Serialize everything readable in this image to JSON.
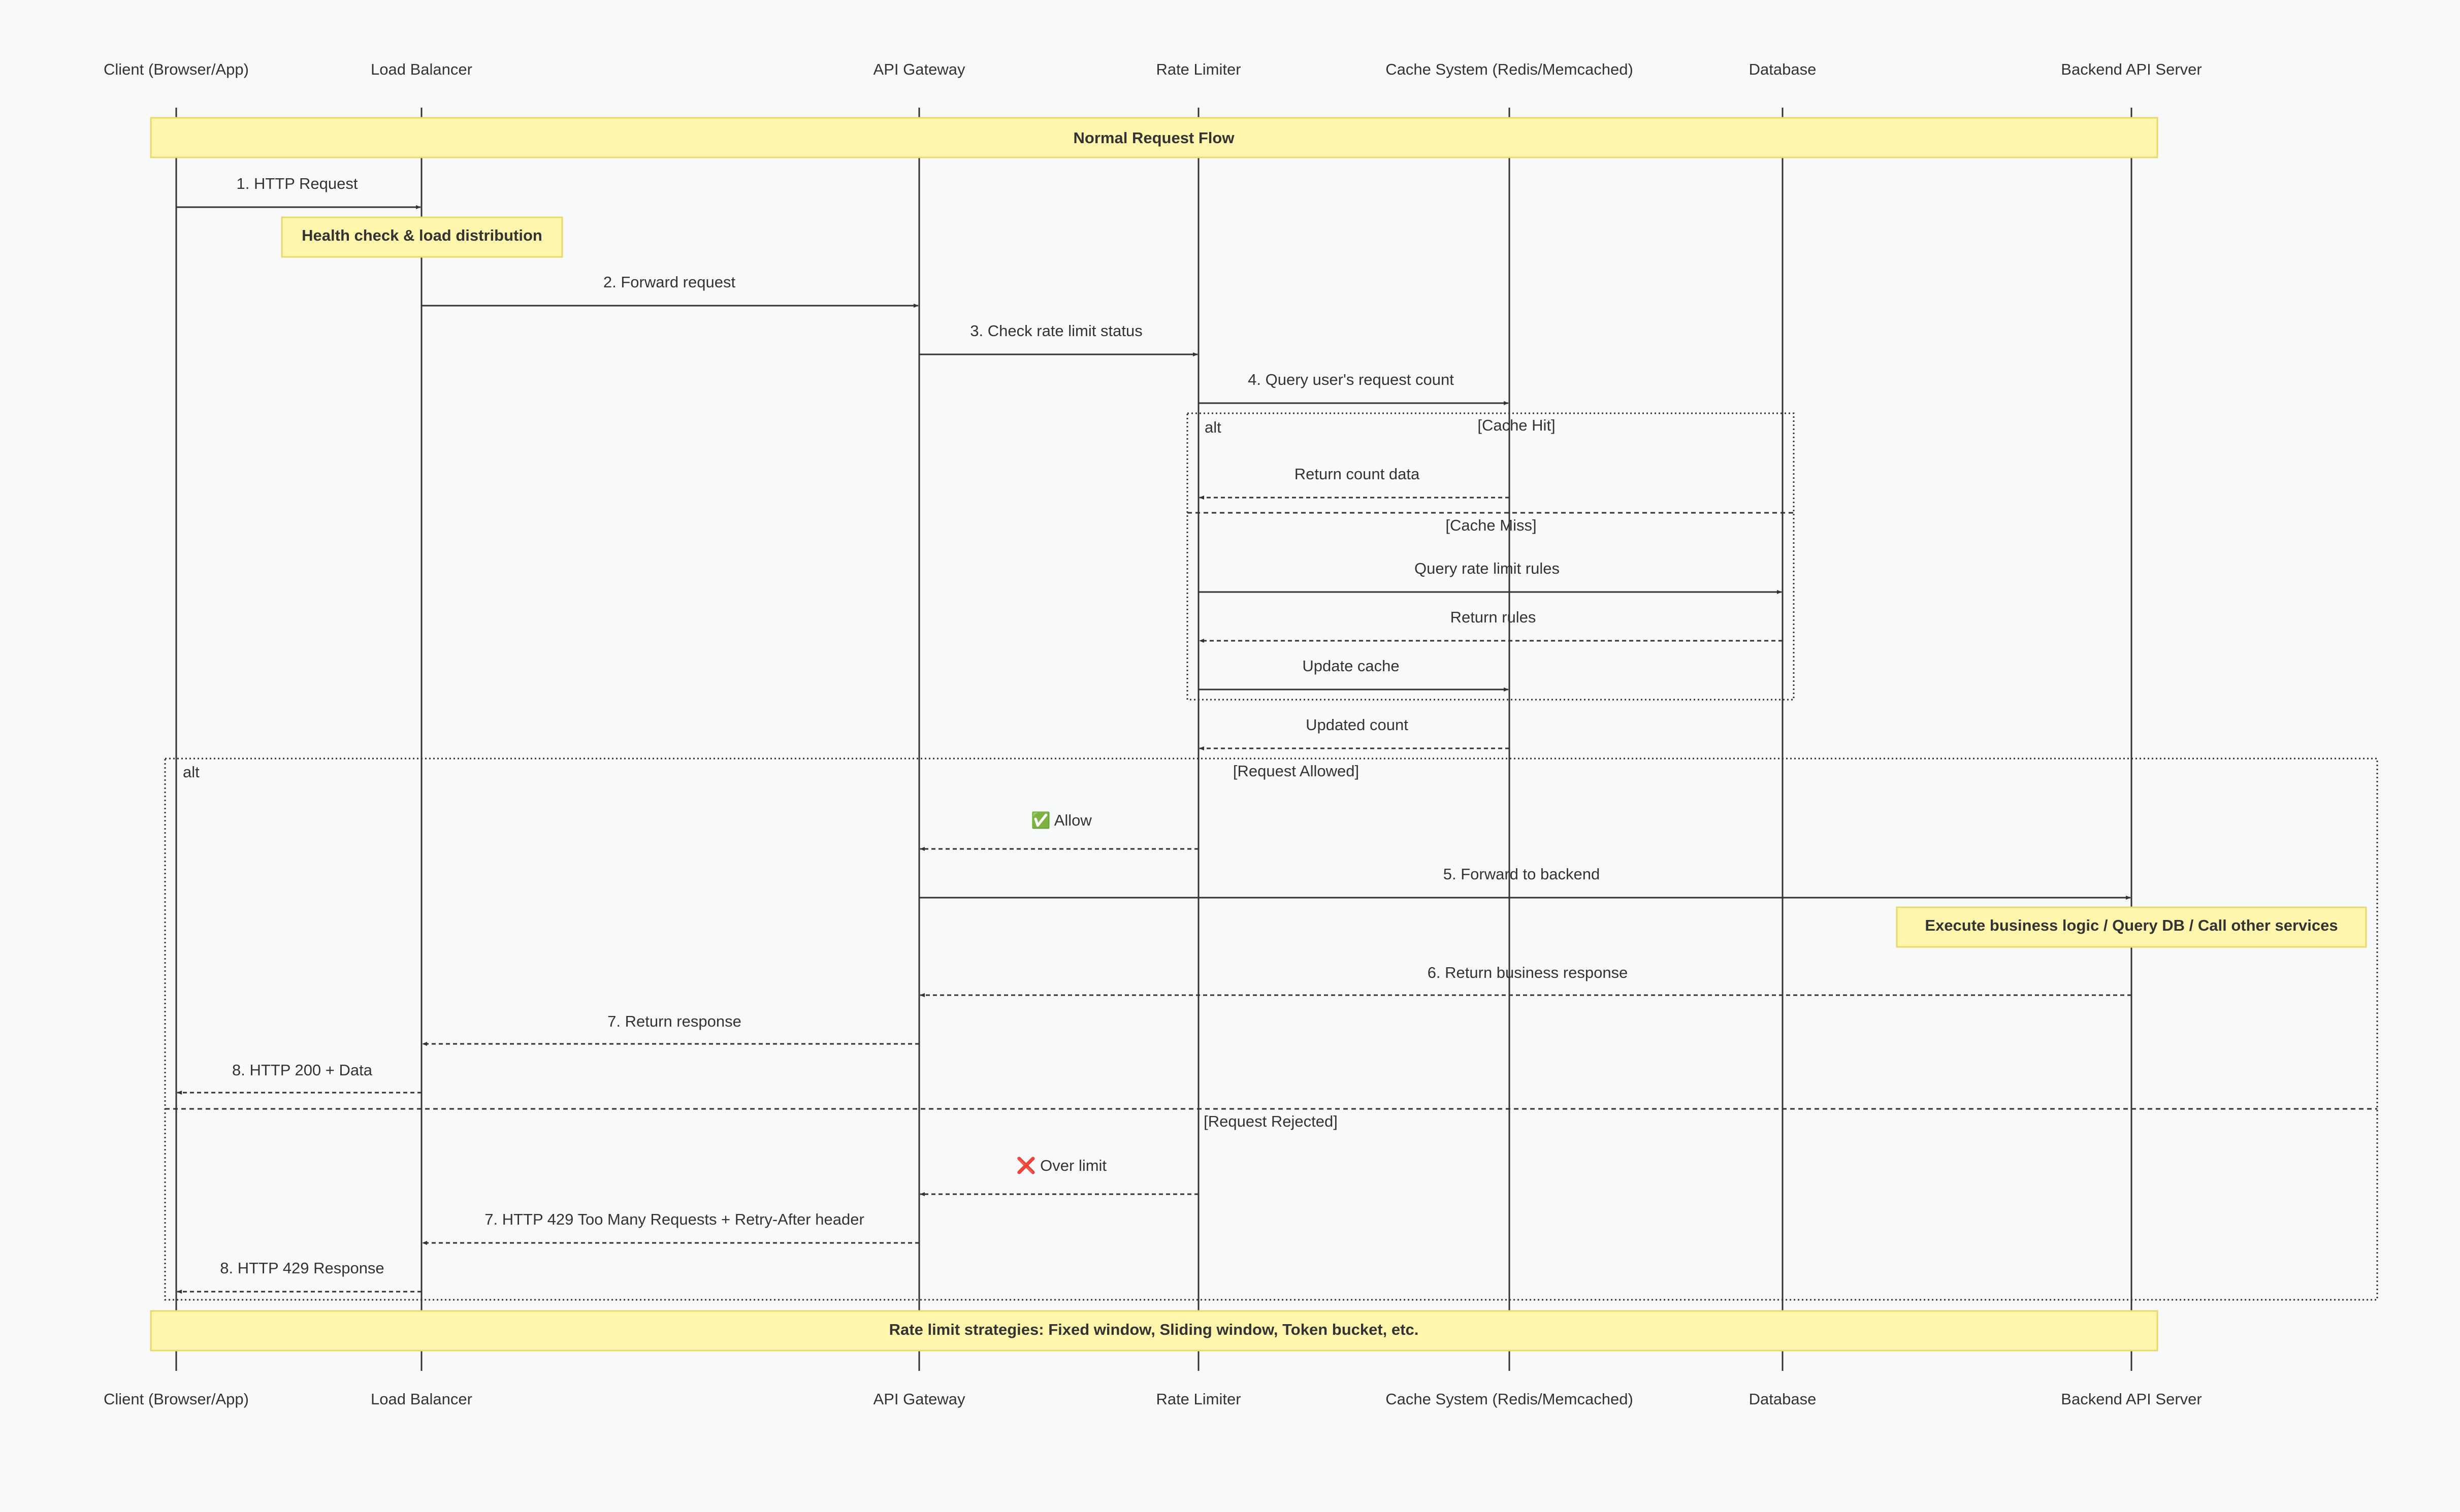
{
  "participants": [
    {
      "id": "client",
      "label": "Client (Browser/App)"
    },
    {
      "id": "lb",
      "label": "Load Balancer"
    },
    {
      "id": "gw",
      "label": "API Gateway"
    },
    {
      "id": "rl",
      "label": "Rate Limiter"
    },
    {
      "id": "cache",
      "label": "Cache System (Redis/Memcached)"
    },
    {
      "id": "db",
      "label": "Database"
    },
    {
      "id": "backend",
      "label": "Backend API Server"
    }
  ],
  "notes": {
    "normal_flow": "Normal Request Flow",
    "health_check": "Health check & load distribution",
    "business_logic": "Execute business logic / Query DB / Call other services",
    "strategies": "Rate limit strategies: Fixed window, Sliding window, Token bucket, etc."
  },
  "messages": [
    {
      "id": "m1",
      "from": "client",
      "to": "lb",
      "label": "1. HTTP Request",
      "style": "solid"
    },
    {
      "id": "m2",
      "from": "lb",
      "to": "gw",
      "label": "2. Forward request",
      "style": "solid"
    },
    {
      "id": "m3",
      "from": "gw",
      "to": "rl",
      "label": "3. Check rate limit status",
      "style": "solid"
    },
    {
      "id": "m4",
      "from": "rl",
      "to": "cache",
      "label": "4. Query user's request count",
      "style": "solid"
    },
    {
      "id": "m5",
      "from": "cache",
      "to": "rl",
      "label": "Return count data",
      "style": "dashed"
    },
    {
      "id": "m6",
      "from": "rl",
      "to": "db",
      "label": "Query rate limit rules",
      "style": "solid"
    },
    {
      "id": "m7",
      "from": "db",
      "to": "rl",
      "label": "Return rules",
      "style": "dashed"
    },
    {
      "id": "m8",
      "from": "rl",
      "to": "cache",
      "label": "Update cache",
      "style": "solid"
    },
    {
      "id": "m9",
      "from": "cache",
      "to": "rl",
      "label": "Updated count",
      "style": "dashed"
    },
    {
      "id": "m10",
      "from": "rl",
      "to": "gw",
      "label": "✅ Allow",
      "style": "dashed"
    },
    {
      "id": "m11",
      "from": "gw",
      "to": "backend",
      "label": "5. Forward to backend",
      "style": "solid"
    },
    {
      "id": "m12",
      "from": "backend",
      "to": "gw",
      "label": "6. Return business response",
      "style": "dashed"
    },
    {
      "id": "m13",
      "from": "gw",
      "to": "lb",
      "label": "7. Return response",
      "style": "dashed"
    },
    {
      "id": "m14",
      "from": "lb",
      "to": "client",
      "label": "8. HTTP 200 + Data",
      "style": "dashed"
    },
    {
      "id": "m15",
      "from": "rl",
      "to": "gw",
      "label": "❌ Over limit",
      "style": "dashed"
    },
    {
      "id": "m16",
      "from": "gw",
      "to": "lb",
      "label": "7. HTTP 429 Too Many Requests + Retry-After header",
      "style": "dashed"
    },
    {
      "id": "m17",
      "from": "lb",
      "to": "client",
      "label": "8. HTTP 429 Response",
      "style": "dashed"
    }
  ],
  "fragments": {
    "cache_alt": {
      "keyword": "alt",
      "cond_hit": "[Cache Hit]",
      "cond_miss": "[Cache Miss]"
    },
    "request_alt": {
      "keyword": "alt",
      "cond_allowed": "[Request Allowed]",
      "cond_rejected": "[Request Rejected]"
    }
  },
  "colors": {
    "background": "#f8f9fa",
    "line": "#333333",
    "note_fill": "#fff5ad",
    "note_border": "#e8d96a"
  }
}
